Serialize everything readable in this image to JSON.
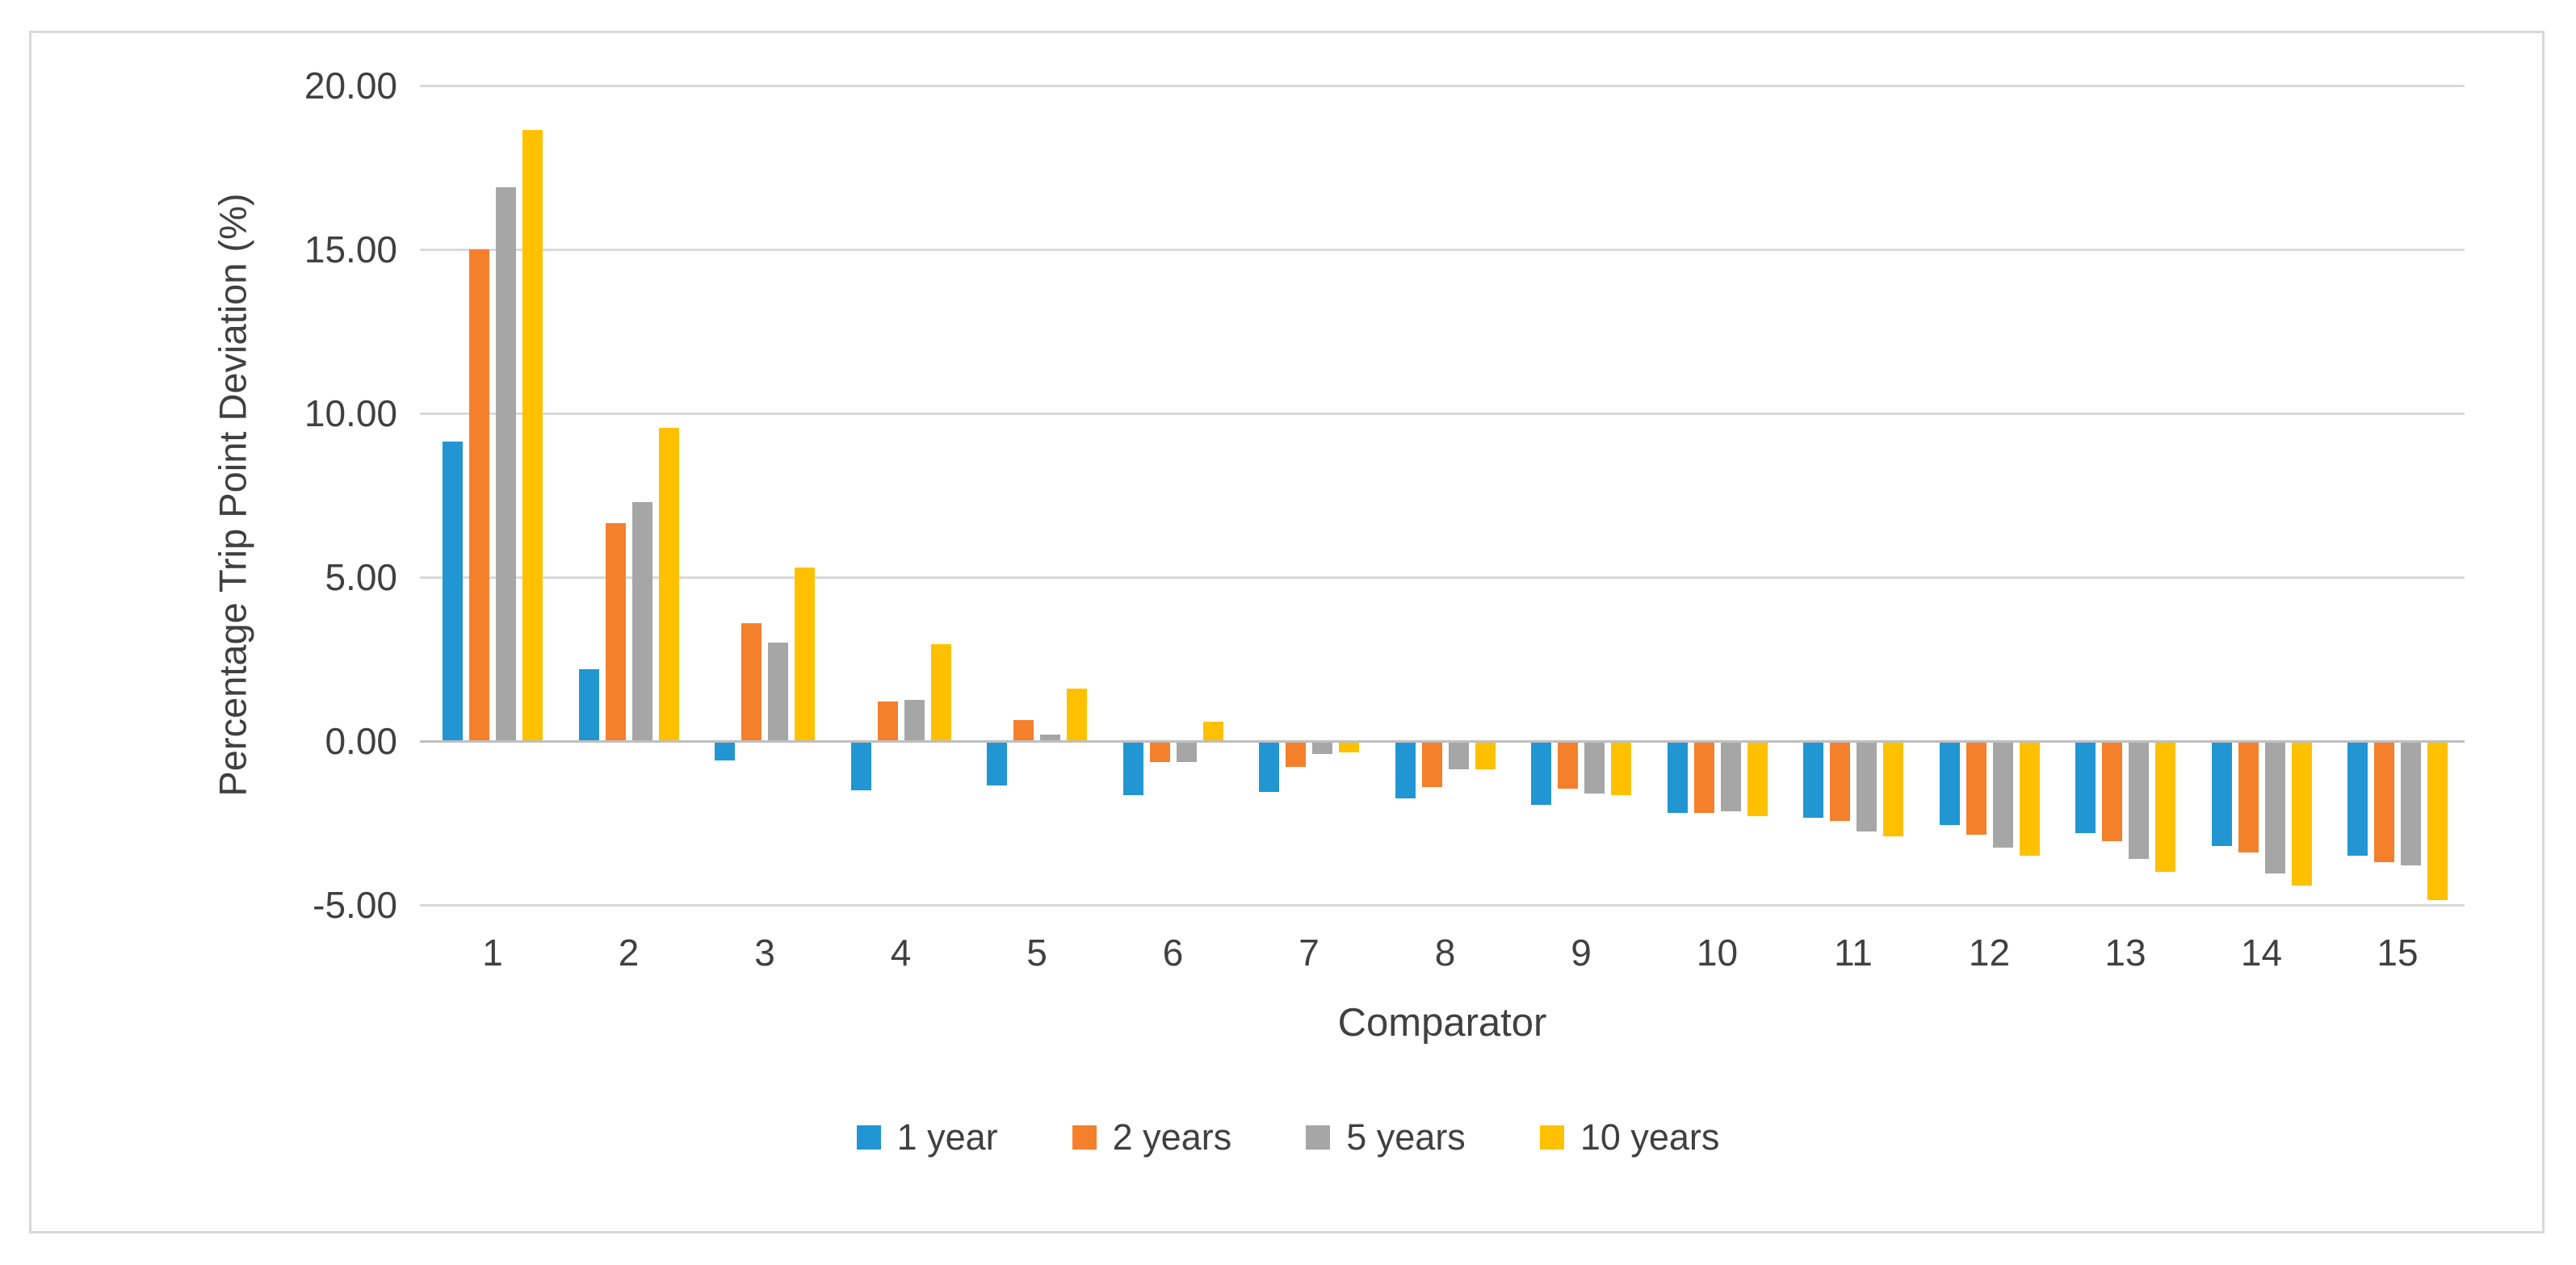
{
  "figure": {
    "background_color": "#ffffff",
    "border_color": "#d9d9d9",
    "gridline_color": "#d9d9d9",
    "axis_line_color": "#bfbfbf",
    "text_color": "#404040"
  },
  "chart_data": {
    "type": "bar",
    "title": "",
    "xlabel": "Comparator",
    "ylabel": "Percentage Trip Point Deviation (%)",
    "categories": [
      "1",
      "2",
      "3",
      "4",
      "5",
      "6",
      "7",
      "8",
      "9",
      "10",
      "11",
      "12",
      "13",
      "14",
      "15"
    ],
    "series": [
      {
        "name": "1 year",
        "color": "#2196d3",
        "values": [
          9.15,
          2.2,
          -0.6,
          -1.5,
          -1.35,
          -1.65,
          -1.55,
          -1.75,
          -1.95,
          -2.2,
          -2.35,
          -2.55,
          -2.8,
          -3.2,
          -3.5
        ]
      },
      {
        "name": "2 years",
        "color": "#f5802c",
        "values": [
          15.0,
          6.65,
          3.6,
          1.2,
          0.65,
          -0.65,
          -0.8,
          -1.4,
          -1.45,
          -2.2,
          -2.45,
          -2.85,
          -3.05,
          -3.4,
          -3.7
        ]
      },
      {
        "name": "5 years",
        "color": "#a6a6a6",
        "values": [
          16.9,
          7.3,
          3.0,
          1.25,
          0.2,
          -0.65,
          -0.4,
          -0.85,
          -1.6,
          -2.15,
          -2.75,
          -3.25,
          -3.6,
          -4.05,
          -3.8
        ]
      },
      {
        "name": "10 years",
        "color": "#ffc000",
        "values": [
          18.65,
          9.55,
          5.3,
          2.95,
          1.6,
          0.6,
          -0.35,
          -0.85,
          -1.65,
          -2.3,
          -2.9,
          -3.5,
          -4.0,
          -4.4,
          -4.85
        ]
      }
    ],
    "y_ticks": [
      20,
      15,
      10,
      5,
      0,
      -5
    ],
    "y_tick_labels": [
      "20.00",
      "15.00",
      "10.00",
      "5.00",
      "0.00",
      "-5.00"
    ],
    "ylim": [
      -5,
      20
    ],
    "grid": true,
    "legend_position": "bottom"
  }
}
